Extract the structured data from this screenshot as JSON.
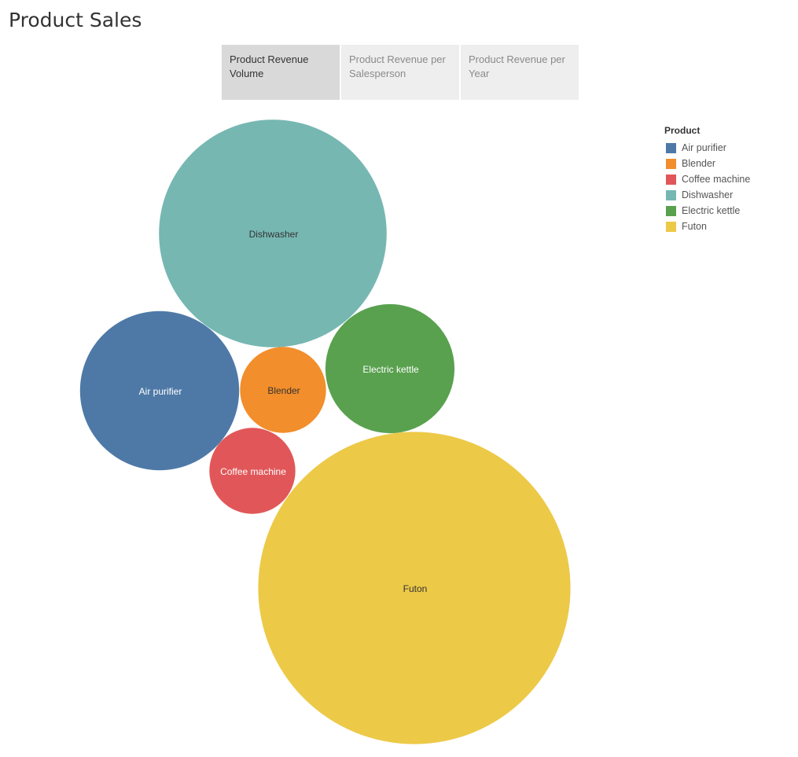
{
  "header": {
    "title": "Product Sales"
  },
  "tabs": [
    {
      "label": "Product Revenue Volume",
      "active": true
    },
    {
      "label": "Product Revenue per Salesperson",
      "active": false
    },
    {
      "label": "Product Revenue per Year",
      "active": false
    }
  ],
  "legend": {
    "title": "Product",
    "placement": "top-right",
    "items": [
      {
        "label": "Air purifier",
        "color": "#4e79a7"
      },
      {
        "label": "Blender",
        "color": "#f28e2b"
      },
      {
        "label": "Coffee machine",
        "color": "#e15759"
      },
      {
        "label": "Dishwasher",
        "color": "#76b7b2"
      },
      {
        "label": "Electric kettle",
        "color": "#59a14f"
      },
      {
        "label": "Futon",
        "color": "#edc948"
      }
    ]
  },
  "chart_data": {
    "type": "bubble",
    "title": "",
    "xlabel": "",
    "ylabel": "",
    "grid": false,
    "size_measure": "revenue (relative)",
    "categories": [
      "Air purifier",
      "Blender",
      "Coffee machine",
      "Dishwasher",
      "Electric kettle",
      "Futon"
    ],
    "values": [
      41,
      12,
      12,
      84,
      27,
      158
    ],
    "colors": [
      "#4e79a7",
      "#f28e2b",
      "#e15759",
      "#76b7b2",
      "#59a14f",
      "#edc948"
    ],
    "label_colors": [
      "#ffffff",
      "#333333",
      "#ffffff",
      "#333333",
      "#ffffff",
      "#333333"
    ]
  }
}
